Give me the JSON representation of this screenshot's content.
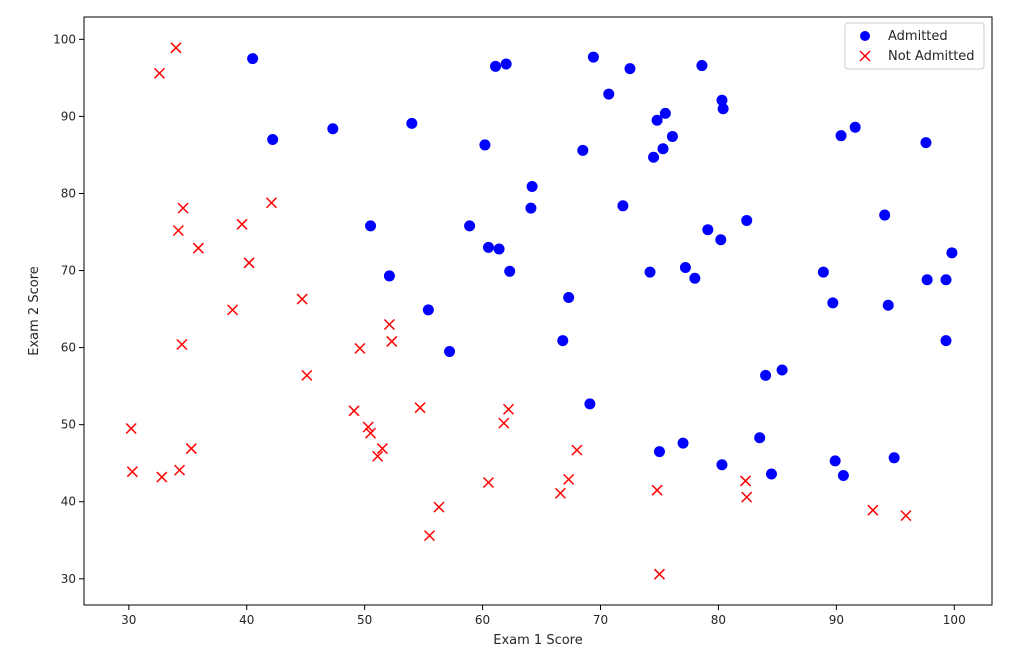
{
  "chart_data": {
    "type": "scatter",
    "title": "",
    "xlabel": "Exam 1 Score",
    "ylabel": "Exam 2 Score",
    "xlim": [
      26.2,
      103.2
    ],
    "ylim": [
      26.6,
      102.9
    ],
    "xticks": [
      30,
      40,
      50,
      60,
      70,
      80,
      90,
      100
    ],
    "yticks": [
      30,
      40,
      50,
      60,
      70,
      80,
      90,
      100
    ],
    "grid": false,
    "legend_position": "top-right",
    "series": [
      {
        "name": "Admitted",
        "marker": "circle",
        "color": "#0000ff",
        "points": [
          [
            40.5,
            97.5
          ],
          [
            42.2,
            87.0
          ],
          [
            47.3,
            88.4
          ],
          [
            54.0,
            89.1
          ],
          [
            50.5,
            75.8
          ],
          [
            52.1,
            69.3
          ],
          [
            55.4,
            64.9
          ],
          [
            57.2,
            59.5
          ],
          [
            60.2,
            86.3
          ],
          [
            61.1,
            96.5
          ],
          [
            62.0,
            96.8
          ],
          [
            58.9,
            75.8
          ],
          [
            60.5,
            73.0
          ],
          [
            61.4,
            72.8
          ],
          [
            62.3,
            69.9
          ],
          [
            64.1,
            78.1
          ],
          [
            64.2,
            80.9
          ],
          [
            66.8,
            60.9
          ],
          [
            67.3,
            66.5
          ],
          [
            68.5,
            85.6
          ],
          [
            69.4,
            97.7
          ],
          [
            69.1,
            52.7
          ],
          [
            70.7,
            92.9
          ],
          [
            71.9,
            78.4
          ],
          [
            72.5,
            96.2
          ],
          [
            74.2,
            69.8
          ],
          [
            74.5,
            84.7
          ],
          [
            74.8,
            89.5
          ],
          [
            75.3,
            85.8
          ],
          [
            75.5,
            90.4
          ],
          [
            76.1,
            87.4
          ],
          [
            75.0,
            46.5
          ],
          [
            77.0,
            47.6
          ],
          [
            77.2,
            70.4
          ],
          [
            78.0,
            69.0
          ],
          [
            78.6,
            96.6
          ],
          [
            79.1,
            75.3
          ],
          [
            80.2,
            74.0
          ],
          [
            80.3,
            92.1
          ],
          [
            80.4,
            91.0
          ],
          [
            80.3,
            44.8
          ],
          [
            82.4,
            76.5
          ],
          [
            83.5,
            48.3
          ],
          [
            84.0,
            56.4
          ],
          [
            84.5,
            43.6
          ],
          [
            85.4,
            57.1
          ],
          [
            88.9,
            69.8
          ],
          [
            89.7,
            65.8
          ],
          [
            89.9,
            45.3
          ],
          [
            90.4,
            87.5
          ],
          [
            90.6,
            43.4
          ],
          [
            91.6,
            88.6
          ],
          [
            94.1,
            77.2
          ],
          [
            94.4,
            65.5
          ],
          [
            94.9,
            45.7
          ],
          [
            97.6,
            86.6
          ],
          [
            97.7,
            68.8
          ],
          [
            99.3,
            68.8
          ],
          [
            99.3,
            60.9
          ],
          [
            99.8,
            72.3
          ]
        ]
      },
      {
        "name": "Not Admitted",
        "marker": "x",
        "color": "#ff0000",
        "points": [
          [
            34.0,
            98.9
          ],
          [
            32.6,
            95.6
          ],
          [
            30.2,
            49.5
          ],
          [
            30.3,
            43.9
          ],
          [
            32.8,
            43.2
          ],
          [
            34.2,
            75.2
          ],
          [
            34.6,
            78.1
          ],
          [
            35.9,
            72.9
          ],
          [
            34.5,
            60.4
          ],
          [
            35.3,
            46.9
          ],
          [
            34.3,
            44.1
          ],
          [
            38.8,
            64.9
          ],
          [
            39.6,
            76.0
          ],
          [
            40.2,
            71.0
          ],
          [
            42.1,
            78.8
          ],
          [
            44.7,
            66.3
          ],
          [
            45.1,
            56.4
          ],
          [
            49.1,
            51.8
          ],
          [
            49.6,
            59.9
          ],
          [
            50.3,
            49.7
          ],
          [
            50.5,
            48.9
          ],
          [
            51.1,
            45.9
          ],
          [
            51.5,
            46.9
          ],
          [
            52.1,
            63.0
          ],
          [
            52.3,
            60.8
          ],
          [
            54.7,
            52.2
          ],
          [
            55.5,
            35.6
          ],
          [
            56.3,
            39.3
          ],
          [
            60.5,
            42.5
          ],
          [
            61.8,
            50.2
          ],
          [
            62.2,
            52.0
          ],
          [
            66.6,
            41.1
          ],
          [
            67.3,
            42.9
          ],
          [
            68.0,
            46.7
          ],
          [
            74.8,
            41.5
          ],
          [
            75.0,
            30.6
          ],
          [
            82.3,
            42.7
          ],
          [
            82.4,
            40.6
          ],
          [
            93.1,
            38.9
          ],
          [
            95.9,
            38.2
          ]
        ]
      }
    ]
  }
}
